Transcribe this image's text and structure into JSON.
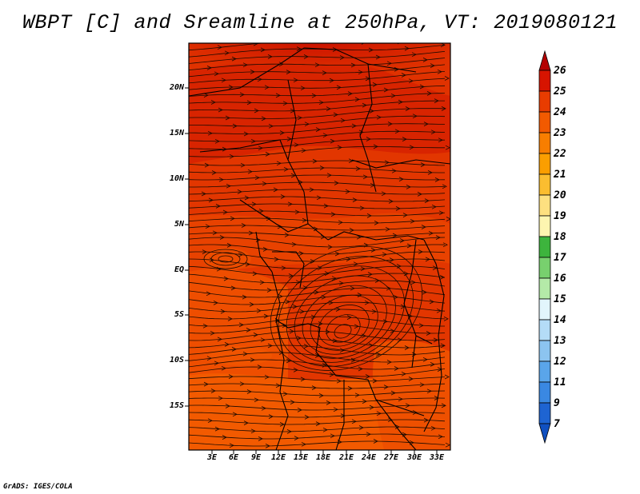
{
  "title": "WBPT [C] and Sreamline at 250hPa, VT: 2019080121",
  "footer": "GrADS: IGES/COLA",
  "map": {
    "lat_labels": [
      "20N",
      "15N",
      "10N",
      "5N",
      "EQ",
      "5S",
      "10S",
      "15S"
    ],
    "lon_labels": [
      "3E",
      "6E",
      "9E",
      "12E",
      "15E",
      "18E",
      "21E",
      "24E",
      "27E",
      "30E",
      "33E"
    ],
    "field_colors": {
      "dark": "#cc1400",
      "red": "#e03200",
      "orange_red": "#ea4a00",
      "orange": "#f45c00"
    }
  },
  "colorbar": {
    "levels": [
      "26",
      "25",
      "24",
      "23",
      "22",
      "21",
      "20",
      "19",
      "18",
      "17",
      "16",
      "15",
      "14",
      "13",
      "12",
      "11",
      "9",
      "7"
    ],
    "colors": [
      "#b40000",
      "#d71400",
      "#e83c00",
      "#f25a00",
      "#f87e00",
      "#fb9e00",
      "#fbbd30",
      "#fde080",
      "#fdf5b0",
      "#3db43d",
      "#78d06e",
      "#b4eaa8",
      "#e2f5fc",
      "#b4dcf7",
      "#8cc4f0",
      "#5aa5ea",
      "#3a88e2",
      "#1e64d2",
      "#1050c0"
    ]
  }
}
